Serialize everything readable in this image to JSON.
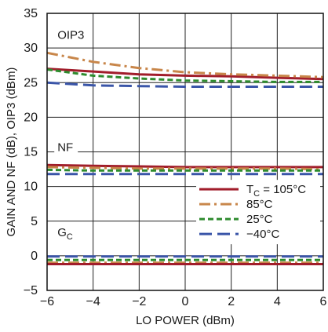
{
  "chart_data": {
    "type": "line",
    "xlabel": "LO POWER (dBm)",
    "ylabel": "GAIN AND NF (dB), OIP3 (dBm)",
    "xlim": [
      -6,
      6
    ],
    "ylim": [
      -5,
      35
    ],
    "x_ticks": [
      "−6",
      "−4",
      "−2",
      "0",
      "2",
      "4",
      "6"
    ],
    "y_ticks": [
      "−5",
      "0",
      "5",
      "10",
      "15",
      "20",
      "25",
      "30",
      "35"
    ],
    "grid": true,
    "legend_position": "right",
    "annotations": [
      {
        "text": "OIP3"
      },
      {
        "text": "NF"
      },
      {
        "text": "G",
        "subscript": "C"
      }
    ],
    "legend": [
      {
        "key": "t105",
        "prefix": "T",
        "sub": "C",
        "suffix": " = 105°C"
      },
      {
        "key": "t85",
        "text": "85°C"
      },
      {
        "key": "t25",
        "text": "25°C"
      },
      {
        "key": "tm40",
        "text": "−40°C"
      }
    ],
    "styles": {
      "t105": {
        "color": "#a11d2b",
        "dash": ""
      },
      "t85": {
        "color": "#c8864a",
        "dash": "14,5,3,5"
      },
      "t25": {
        "color": "#2e8b2e",
        "dash": "7,4"
      },
      "tm40": {
        "color": "#3a55a8",
        "dash": "16,7"
      }
    },
    "series": [
      {
        "key": "t105",
        "group": "OIP3",
        "x": [
          -6,
          -4,
          -2,
          0,
          2,
          4,
          6
        ],
        "y": [
          27.0,
          26.6,
          26.2,
          26.0,
          25.9,
          25.7,
          25.5
        ]
      },
      {
        "key": "t85",
        "group": "OIP3",
        "x": [
          -6,
          -4,
          -2,
          0,
          2,
          4,
          6
        ],
        "y": [
          29.3,
          28.0,
          27.1,
          26.5,
          26.2,
          26.0,
          25.8
        ]
      },
      {
        "key": "t25",
        "group": "OIP3",
        "x": [
          -6,
          -4,
          -2,
          0,
          2,
          4,
          6
        ],
        "y": [
          26.9,
          26.0,
          25.6,
          25.3,
          25.2,
          25.1,
          25.1
        ]
      },
      {
        "key": "tm40",
        "group": "OIP3",
        "x": [
          -6,
          -4,
          -2,
          0,
          2,
          4,
          6
        ],
        "y": [
          25.0,
          24.6,
          24.5,
          24.4,
          24.4,
          24.4,
          24.4
        ]
      },
      {
        "key": "t105",
        "group": "NF",
        "x": [
          -6,
          -4,
          -2,
          0,
          2,
          4,
          6
        ],
        "y": [
          13.1,
          13.0,
          12.9,
          12.8,
          12.8,
          12.8,
          12.8
        ]
      },
      {
        "key": "t85",
        "group": "NF",
        "x": [
          -6,
          -4,
          -2,
          0,
          2,
          4,
          6
        ],
        "y": [
          12.8,
          12.7,
          12.6,
          12.6,
          12.6,
          12.6,
          12.5
        ]
      },
      {
        "key": "t25",
        "group": "NF",
        "x": [
          -6,
          -4,
          -2,
          0,
          2,
          4,
          6
        ],
        "y": [
          12.4,
          12.3,
          12.3,
          12.3,
          12.3,
          12.3,
          12.3
        ]
      },
      {
        "key": "tm40",
        "group": "NF",
        "x": [
          -6,
          -4,
          -2,
          0,
          2,
          4,
          6
        ],
        "y": [
          11.8,
          11.8,
          11.8,
          11.8,
          11.8,
          11.8,
          11.8
        ]
      },
      {
        "key": "tm40",
        "group": "GC",
        "x": [
          -6,
          -4,
          -2,
          0,
          2,
          4,
          6
        ],
        "y": [
          -0.1,
          -0.1,
          -0.1,
          -0.1,
          -0.1,
          -0.1,
          -0.1
        ]
      },
      {
        "key": "t25",
        "group": "GC",
        "x": [
          -6,
          -4,
          -2,
          0,
          2,
          4,
          6
        ],
        "y": [
          -0.6,
          -0.6,
          -0.6,
          -0.6,
          -0.6,
          -0.6,
          -0.6
        ]
      },
      {
        "key": "t85",
        "group": "GC",
        "x": [
          -6,
          -4,
          -2,
          0,
          2,
          4,
          6
        ],
        "y": [
          -1.0,
          -1.0,
          -1.0,
          -1.0,
          -1.0,
          -1.0,
          -1.0
        ]
      },
      {
        "key": "t105",
        "group": "GC",
        "x": [
          -6,
          -4,
          -2,
          0,
          2,
          4,
          6
        ],
        "y": [
          -1.2,
          -1.2,
          -1.2,
          -1.2,
          -1.2,
          -1.2,
          -1.2
        ]
      }
    ]
  }
}
